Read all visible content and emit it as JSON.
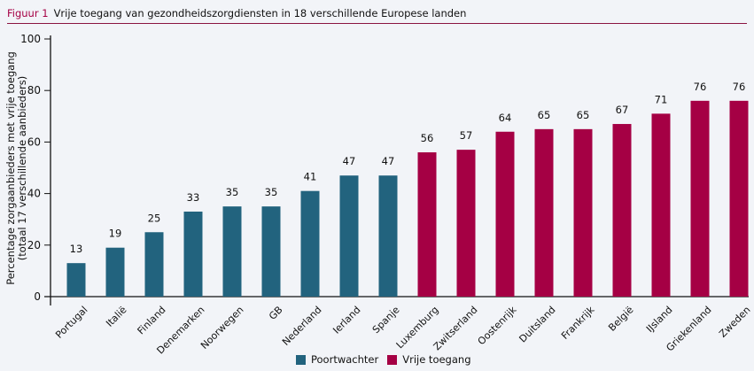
{
  "header": {
    "figure_label": "Figuur 1",
    "title": "Vrije toegang van gezondheidszorgdiensten in 18 verschillende Europese landen"
  },
  "chart_data": {
    "type": "bar",
    "title": "Vrije toegang van gezondheidszorgdiensten in 18 verschillende Europese landen",
    "xlabel": "",
    "ylabel": "Percentage zorgaanbieders met vrije toegang (totaal 17 verschillende aanbieders)",
    "ylabel_lines": [
      "Percentage zorgaanbieders met vrije toegang",
      "(totaal 17 verschillende aanbieders)"
    ],
    "ylim": [
      0,
      100
    ],
    "yticks": [
      0,
      20,
      40,
      60,
      80,
      100
    ],
    "grid": false,
    "legend_position": "bottom",
    "categories": [
      "Portugal",
      "Italië",
      "Finland",
      "Denemarken",
      "Noorwegen",
      "GB",
      "Nederland",
      "Ierland",
      "Spanje",
      "Luxemburg",
      "Zwitserland",
      "Oostenrijk",
      "Duitsland",
      "Frankrijk",
      "België",
      "IJsland",
      "Griekenland",
      "Zweden"
    ],
    "values": [
      13,
      19,
      25,
      33,
      35,
      35,
      41,
      47,
      47,
      56,
      57,
      64,
      65,
      65,
      67,
      71,
      76,
      76
    ],
    "groups": [
      "Poortwachter",
      "Poortwachter",
      "Poortwachter",
      "Poortwachter",
      "Poortwachter",
      "Poortwachter",
      "Poortwachter",
      "Poortwachter",
      "Poortwachter",
      "Vrije toegang",
      "Vrije toegang",
      "Vrije toegang",
      "Vrije toegang",
      "Vrije toegang",
      "Vrije toegang",
      "Vrije toegang",
      "Vrije toegang",
      "Vrije toegang"
    ],
    "series": [
      {
        "name": "Poortwachter",
        "color": "#22637e"
      },
      {
        "name": "Vrije toegang",
        "color": "#a50044"
      }
    ]
  }
}
